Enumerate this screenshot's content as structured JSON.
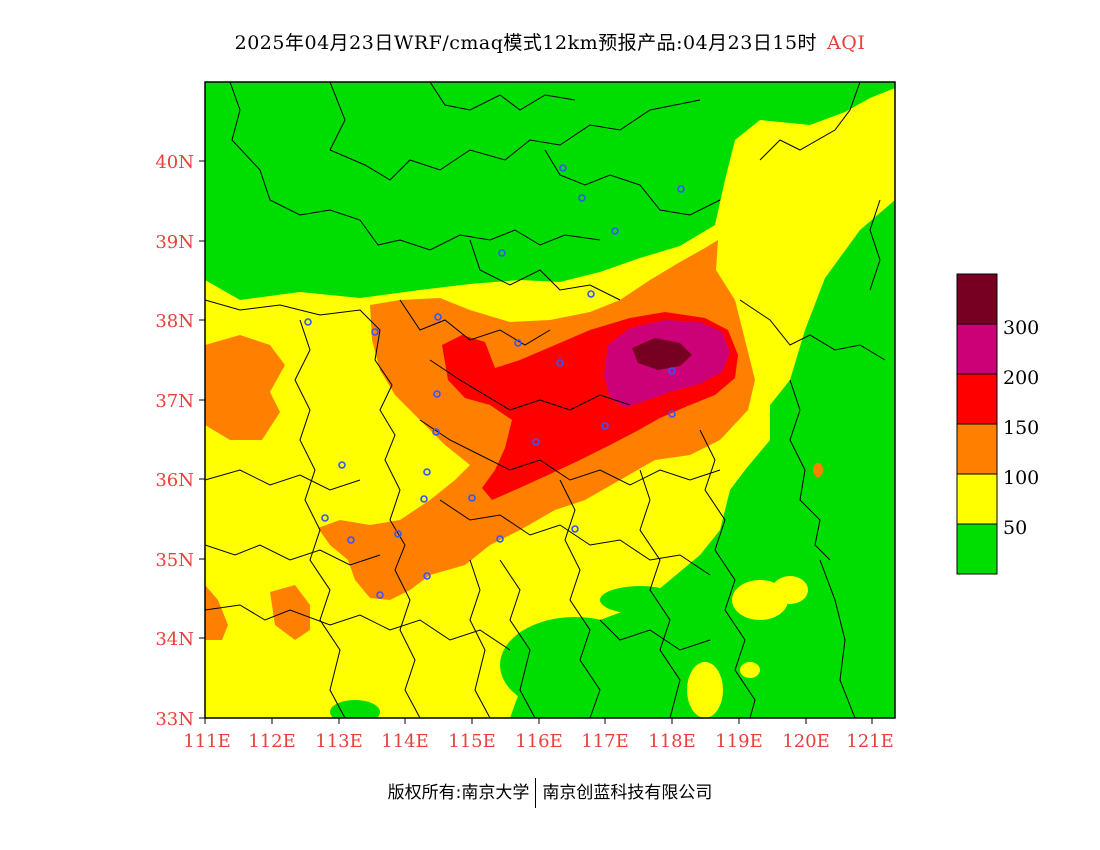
{
  "title": {
    "main": "2025年04月23日WRF/cmaq模式12km预报产品:04月23日15时",
    "variable": "AQI"
  },
  "colors": {
    "good": "#00dd00",
    "moderate": "#ffff00",
    "sensitive": "#ff8000",
    "unhealthy": "#ff0000",
    "very_unhealthy": "#cc0077",
    "hazardous": "#770022",
    "city_marker": "#3355ff",
    "tick_text": "#e8403a"
  },
  "axes": {
    "x_ticks": [
      "111E",
      "112E",
      "113E",
      "114E",
      "115E",
      "116E",
      "117E",
      "118E",
      "119E",
      "120E",
      "121E"
    ],
    "y_ticks": [
      "33N",
      "34N",
      "35N",
      "36N",
      "37N",
      "38N",
      "39N",
      "40N"
    ]
  },
  "legend": {
    "labels": [
      "50",
      "100",
      "150",
      "200",
      "300"
    ]
  },
  "footer": {
    "left": "版权所有:南京大学",
    "right": "南京创蓝科技有限公司"
  }
}
